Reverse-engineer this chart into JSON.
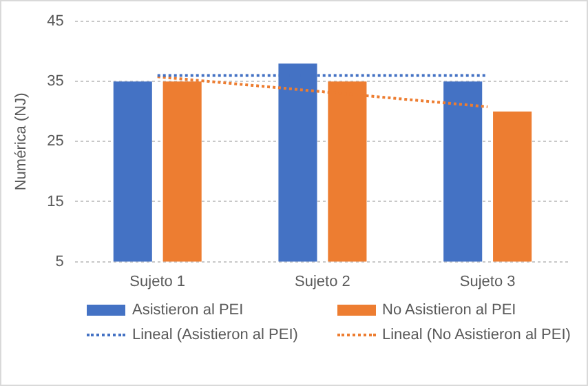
{
  "chart_data": {
    "type": "bar",
    "ylabel": "Numérica (NJ)",
    "categories": [
      "Sujeto 1",
      "Sujeto 2",
      "Sujeto 3"
    ],
    "series": [
      {
        "name": "Asistieron al PEI",
        "color": "#4472c4",
        "values": [
          35,
          38,
          35
        ]
      },
      {
        "name": "No Asistieron al PEI",
        "color": "#ed7d31",
        "values": [
          35,
          35,
          30
        ]
      },
      {
        "name": "Lineal (Asistieron al PEI)",
        "type": "line",
        "color": "#4472c4",
        "line_style": "dotted",
        "marker": "none",
        "x": [
          "Sujeto 1",
          "Sujeto 2",
          "Sujeto 3"
        ],
        "values": [
          36,
          36,
          36
        ]
      },
      {
        "name": "Lineal (No Asistieron al PEI)",
        "type": "line",
        "color": "#ed7d31",
        "line_style": "dotted",
        "marker": "none",
        "x": [
          "Sujeto 1",
          "Sujeto 2",
          "Sujeto 3"
        ],
        "values": [
          35.8,
          33.3,
          30.8
        ]
      }
    ],
    "ylim": [
      5,
      45
    ],
    "yticks": [
      5,
      15,
      25,
      35,
      45
    ],
    "grid": "y",
    "legend": "bottom"
  }
}
